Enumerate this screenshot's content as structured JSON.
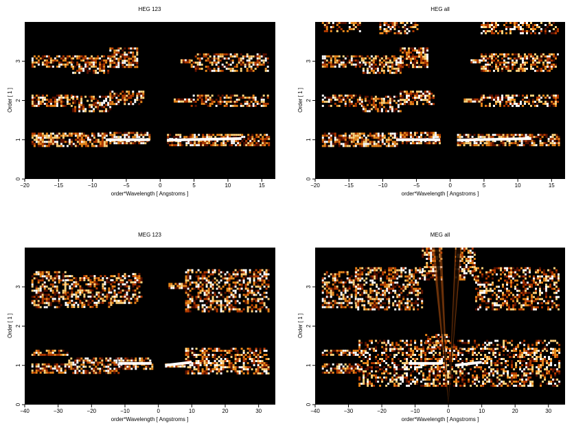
{
  "chart_data": [
    {
      "type": "heatmap",
      "title": "HEG 123",
      "xlabel": "order*Wavelength [ Angstroms ]",
      "ylabel": "Order [ 1 ]",
      "xlim": [
        -20,
        17
      ],
      "ylim": [
        0,
        4
      ],
      "xticks": [
        -20,
        -15,
        -10,
        -5,
        0,
        5,
        10,
        15
      ],
      "yticks": [
        0,
        1,
        2,
        3
      ],
      "grid": false,
      "colormap": [
        "#000000",
        "#5a1100",
        "#b33a00",
        "#e8861a",
        "#ffd27a",
        "#ffffff"
      ],
      "bands": [
        {
          "order": 1,
          "x": [
            -19,
            -8
          ],
          "y": [
            0.85,
            1.18
          ],
          "density": 0.75
        },
        {
          "order": 1,
          "x": [
            -7.5,
            -1.5
          ],
          "y": [
            0.9,
            1.2
          ],
          "density": 0.75
        },
        {
          "order": 1,
          "x": [
            1,
            16
          ],
          "y": [
            0.85,
            1.15
          ],
          "density": 0.7
        },
        {
          "order": 2,
          "x": [
            -19,
            -13
          ],
          "y": [
            1.85,
            2.15
          ],
          "density": 0.6
        },
        {
          "order": 2,
          "x": [
            -13,
            -7.5
          ],
          "y": [
            1.75,
            2.12
          ],
          "density": 0.6
        },
        {
          "order": 2,
          "x": [
            -7.5,
            -2.5
          ],
          "y": [
            1.9,
            2.25
          ],
          "density": 0.65
        },
        {
          "order": 2,
          "x": [
            2,
            4.5
          ],
          "y": [
            1.95,
            2.05
          ],
          "density": 0.95
        },
        {
          "order": 2,
          "x": [
            4.5,
            16
          ],
          "y": [
            1.85,
            2.15
          ],
          "density": 0.55
        },
        {
          "order": 3,
          "x": [
            -19,
            -13
          ],
          "y": [
            2.85,
            3.15
          ],
          "density": 0.6
        },
        {
          "order": 3,
          "x": [
            -13,
            -7.5
          ],
          "y": [
            2.7,
            3.15
          ],
          "density": 0.6
        },
        {
          "order": 3,
          "x": [
            -7.5,
            -3.5
          ],
          "y": [
            2.85,
            3.35
          ],
          "density": 0.7
        },
        {
          "order": 3,
          "x": [
            3,
            4.5
          ],
          "y": [
            2.95,
            3.05
          ],
          "density": 0.95
        },
        {
          "order": 3,
          "x": [
            4.5,
            16
          ],
          "y": [
            2.75,
            3.2
          ],
          "density": 0.55
        }
      ],
      "lines": [
        {
          "x": [
            -8,
            -1.5
          ],
          "y": [
            1.0,
            1.0
          ]
        },
        {
          "x": [
            1,
            12
          ],
          "y": [
            0.99,
            1.03
          ]
        }
      ]
    },
    {
      "type": "heatmap",
      "title": "HEG all",
      "xlabel": "order*Wavelength [ Angstroms ]",
      "ylabel": "Order [ 1 ]",
      "xlim": [
        -20,
        17
      ],
      "ylim": [
        0,
        4
      ],
      "xticks": [
        -20,
        -15,
        -10,
        -5,
        0,
        5,
        10,
        15
      ],
      "yticks": [
        0,
        1,
        2,
        3
      ],
      "grid": false,
      "colormap": [
        "#000000",
        "#5a1100",
        "#b33a00",
        "#e8861a",
        "#ffd27a",
        "#ffffff"
      ],
      "bands": [
        {
          "order": 1,
          "x": [
            -19,
            -8
          ],
          "y": [
            0.85,
            1.18
          ],
          "density": 0.75
        },
        {
          "order": 1,
          "x": [
            -7.5,
            -1.5
          ],
          "y": [
            0.9,
            1.2
          ],
          "density": 0.75
        },
        {
          "order": 1,
          "x": [
            1,
            16
          ],
          "y": [
            0.85,
            1.15
          ],
          "density": 0.7
        },
        {
          "order": 2,
          "x": [
            -19,
            -13
          ],
          "y": [
            1.85,
            2.15
          ],
          "density": 0.6
        },
        {
          "order": 2,
          "x": [
            -13,
            -7.5
          ],
          "y": [
            1.75,
            2.12
          ],
          "density": 0.6
        },
        {
          "order": 2,
          "x": [
            -7.5,
            -2.5
          ],
          "y": [
            1.9,
            2.25
          ],
          "density": 0.65
        },
        {
          "order": 2,
          "x": [
            2,
            4.5
          ],
          "y": [
            1.95,
            2.05
          ],
          "density": 0.95
        },
        {
          "order": 2,
          "x": [
            4.5,
            16
          ],
          "y": [
            1.85,
            2.15
          ],
          "density": 0.55
        },
        {
          "order": 3,
          "x": [
            -19,
            -13
          ],
          "y": [
            2.85,
            3.15
          ],
          "density": 0.6
        },
        {
          "order": 3,
          "x": [
            -13,
            -7.5
          ],
          "y": [
            2.7,
            3.15
          ],
          "density": 0.6
        },
        {
          "order": 3,
          "x": [
            -7.5,
            -3.5
          ],
          "y": [
            2.85,
            3.35
          ],
          "density": 0.7
        },
        {
          "order": 3,
          "x": [
            3,
            4.5
          ],
          "y": [
            2.95,
            3.05
          ],
          "density": 0.95
        },
        {
          "order": 3,
          "x": [
            4.5,
            16
          ],
          "y": [
            2.75,
            3.2
          ],
          "density": 0.55
        },
        {
          "order": 4,
          "x": [
            -19,
            -13
          ],
          "y": [
            3.75,
            4.0
          ],
          "density": 0.45
        },
        {
          "order": 4,
          "x": [
            -10.5,
            -5
          ],
          "y": [
            3.7,
            4.0
          ],
          "density": 0.55
        },
        {
          "order": 4,
          "x": [
            4.5,
            16
          ],
          "y": [
            3.7,
            4.0
          ],
          "density": 0.5
        }
      ],
      "lines": [
        {
          "x": [
            -8,
            -1.5
          ],
          "y": [
            1.0,
            1.0
          ]
        },
        {
          "x": [
            1,
            12
          ],
          "y": [
            0.99,
            1.03
          ]
        }
      ]
    },
    {
      "type": "heatmap",
      "title": "MEG 123",
      "xlabel": "order*Wavelength [ Angstroms ]",
      "ylabel": "Order [ 1 ]",
      "xlim": [
        -40,
        35
      ],
      "ylim": [
        0,
        4
      ],
      "xticks": [
        -40,
        -30,
        -20,
        -10,
        0,
        10,
        20,
        30
      ],
      "yticks": [
        0,
        1,
        2,
        3
      ],
      "grid": false,
      "colormap": [
        "#000000",
        "#5a1100",
        "#b33a00",
        "#e8861a",
        "#ffd27a",
        "#ffffff"
      ],
      "bands": [
        {
          "order": 1,
          "x": [
            -38,
            -27
          ],
          "y": [
            1.25,
            1.4
          ],
          "density": 0.75
        },
        {
          "order": 1,
          "x": [
            -38,
            -27
          ],
          "y": [
            0.8,
            1.05
          ],
          "density": 0.7
        },
        {
          "order": 1,
          "x": [
            -27,
            -12
          ],
          "y": [
            0.8,
            1.2
          ],
          "density": 0.6
        },
        {
          "order": 1,
          "x": [
            -12,
            -2
          ],
          "y": [
            0.9,
            1.2
          ],
          "density": 0.6
        },
        {
          "order": 1,
          "x": [
            2,
            8
          ],
          "y": [
            0.95,
            1.05
          ],
          "density": 0.9
        },
        {
          "order": 1,
          "x": [
            8,
            33
          ],
          "y": [
            0.8,
            1.45
          ],
          "density": 0.6
        },
        {
          "order": 3,
          "x": [
            -38,
            -28
          ],
          "y": [
            2.5,
            3.4
          ],
          "density": 0.55
        },
        {
          "order": 3,
          "x": [
            -28,
            -14
          ],
          "y": [
            2.5,
            3.3
          ],
          "density": 0.55
        },
        {
          "order": 3,
          "x": [
            -14,
            -5
          ],
          "y": [
            2.6,
            3.35
          ],
          "density": 0.55
        },
        {
          "order": 3,
          "x": [
            3,
            8
          ],
          "y": [
            2.95,
            3.1
          ],
          "density": 0.95
        },
        {
          "order": 3,
          "x": [
            8,
            33
          ],
          "y": [
            2.4,
            3.45
          ],
          "density": 0.5
        }
      ],
      "lines": [
        {
          "x": [
            -12,
            -2
          ],
          "y": [
            1.05,
            1.05
          ]
        },
        {
          "x": [
            2,
            10
          ],
          "y": [
            1.0,
            1.08
          ]
        }
      ]
    },
    {
      "type": "heatmap",
      "title": "MEG all",
      "xlabel": "order*Wavelength [ Angstroms ]",
      "ylabel": "Order [ 1 ]",
      "xlim": [
        -40,
        35
      ],
      "ylim": [
        0,
        4
      ],
      "xticks": [
        -40,
        -30,
        -20,
        -10,
        0,
        10,
        20,
        30
      ],
      "yticks": [
        0,
        1,
        2,
        3
      ],
      "grid": false,
      "colormap": [
        "#000000",
        "#5a1100",
        "#b33a00",
        "#e8861a",
        "#ffd27a",
        "#ffffff"
      ],
      "bands": [
        {
          "order": 1,
          "x": [
            -38,
            -27
          ],
          "y": [
            1.25,
            1.4
          ],
          "density": 0.75
        },
        {
          "order": 1,
          "x": [
            -38,
            -27
          ],
          "y": [
            0.8,
            1.05
          ],
          "density": 0.7
        },
        {
          "order": 1,
          "x": [
            -27,
            33
          ],
          "y": [
            0.5,
            1.45
          ],
          "density": 0.5
        },
        {
          "order": 1,
          "x": [
            -27,
            33
          ],
          "y": [
            1.4,
            1.65
          ],
          "density": 0.4
        },
        {
          "order": 2,
          "x": [
            -7,
            0
          ],
          "y": [
            1.45,
            1.8
          ],
          "density": 0.45
        },
        {
          "order": 3,
          "x": [
            -38,
            -28
          ],
          "y": [
            2.5,
            3.4
          ],
          "density": 0.55
        },
        {
          "order": 3,
          "x": [
            -28,
            -8
          ],
          "y": [
            2.4,
            3.5
          ],
          "density": 0.55
        },
        {
          "order": 3,
          "x": [
            -8,
            -2
          ],
          "y": [
            3.2,
            4.0
          ],
          "density": 0.55
        },
        {
          "order": 3,
          "x": [
            2,
            8
          ],
          "y": [
            3.2,
            4.0
          ],
          "density": 0.55
        },
        {
          "order": 3,
          "x": [
            8,
            33
          ],
          "y": [
            2.4,
            3.5
          ],
          "density": 0.5
        }
      ],
      "lines": [
        {
          "x": [
            -12,
            -2
          ],
          "y": [
            1.05,
            1.05
          ]
        },
        {
          "x": [
            2,
            10
          ],
          "y": [
            1.0,
            1.08
          ]
        }
      ],
      "wedges": [
        {
          "apex": [
            0,
            0
          ],
          "x_top": [
            -5,
            -2
          ],
          "y_top": 4
        },
        {
          "apex": [
            0,
            0
          ],
          "x_top": [
            2,
            4
          ],
          "y_top": 4
        }
      ]
    }
  ]
}
